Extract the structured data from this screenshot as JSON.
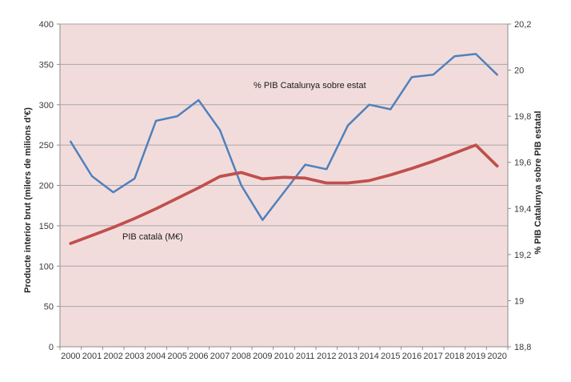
{
  "chart_data": {
    "type": "line",
    "title": "",
    "x": [
      "2000",
      "2001",
      "2002",
      "2003",
      "2004",
      "2005",
      "2006",
      "2007",
      "2008",
      "2009",
      "2010",
      "2011",
      "2012",
      "2013",
      "2014",
      "2015",
      "2016",
      "2017",
      "2018",
      "2019",
      "2020"
    ],
    "series": [
      {
        "name": "% PIB Catalunya sobre estat",
        "axis": "right",
        "color": "#4f81bd",
        "values": [
          19.69,
          19.54,
          19.47,
          19.53,
          19.78,
          19.8,
          19.87,
          19.74,
          19.5,
          19.35,
          19.47,
          19.59,
          19.57,
          19.76,
          19.85,
          19.83,
          19.97,
          19.98,
          20.06,
          20.07,
          19.98
        ]
      },
      {
        "name": "PIB català (M€)",
        "axis": "left",
        "color": "#c0504d",
        "values": [
          128,
          138,
          148,
          159,
          171,
          184,
          197,
          211,
          216,
          208,
          210,
          209,
          203,
          203,
          206,
          213,
          221,
          230,
          240,
          250,
          224
        ]
      }
    ],
    "left_axis": {
      "title": "Producte interior brut (milers de milions d'€)",
      "min": 0,
      "max": 400,
      "step": 50,
      "tick_labels": [
        "0",
        "50",
        "100",
        "150",
        "200",
        "250",
        "300",
        "350",
        "400"
      ]
    },
    "right_axis": {
      "title": "% PIB Catalunya sobre PIB estatal",
      "min": 18.8,
      "max": 20.2,
      "step": 0.2,
      "tick_labels": [
        "18,8",
        "19",
        "19,2",
        "19,4",
        "19,6",
        "19,8",
        "20",
        "20,2"
      ]
    },
    "annotations": [
      {
        "text": "% PIB Catalunya sobre estat",
        "x": 317,
        "y": 110
      },
      {
        "text": "PIB català (M€)",
        "x": 153,
        "y": 299
      }
    ],
    "legend": "none",
    "grid": true
  },
  "colors": {
    "background": "#ffffff",
    "plot_background": "#f2dcdb",
    "gridline": "#a6a6a6",
    "axis_line": "#8c8c8c",
    "series_blue": "#4f81bd",
    "series_red": "#c0504d"
  }
}
